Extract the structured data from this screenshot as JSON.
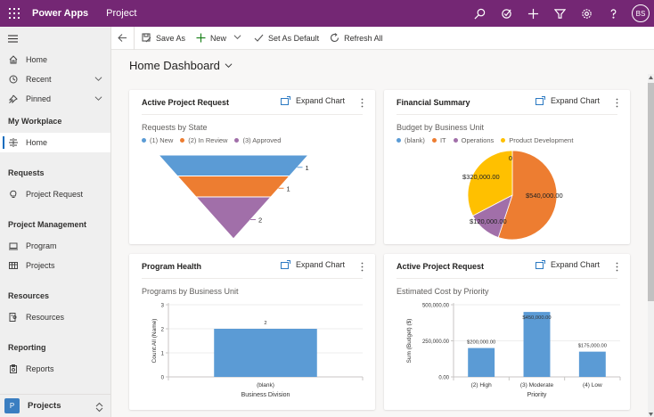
{
  "topbar": {
    "brand": "Power Apps",
    "app_name": "Project",
    "icons": [
      "search-icon",
      "task-icon",
      "plus-icon",
      "filter-icon",
      "gear-icon",
      "help-icon"
    ],
    "avatar_initials": "BS",
    "color": "#742774"
  },
  "commandbar": {
    "save_as": "Save As",
    "new": "New",
    "set_default": "Set As Default",
    "refresh_all": "Refresh All"
  },
  "sidebar": {
    "top_items": [
      {
        "label": "Home",
        "icon": "home-icon"
      },
      {
        "label": "Recent",
        "icon": "clock-icon",
        "expandable": true
      },
      {
        "label": "Pinned",
        "icon": "pin-icon",
        "expandable": true
      }
    ],
    "groups": [
      {
        "title": "My Workplace",
        "items": [
          {
            "label": "Home",
            "icon": "dashboard-icon",
            "active": true
          }
        ]
      },
      {
        "title": "Requests",
        "items": [
          {
            "label": "Project Request",
            "icon": "lightbulb-icon"
          }
        ]
      },
      {
        "title": "Project Management",
        "items": [
          {
            "label": "Program",
            "icon": "laptop-icon"
          },
          {
            "label": "Projects",
            "icon": "grid-icon"
          }
        ]
      },
      {
        "title": "Resources",
        "items": [
          {
            "label": "Resources",
            "icon": "resources-icon"
          }
        ]
      },
      {
        "title": "Reporting",
        "items": [
          {
            "label": "Reports",
            "icon": "clipboard-icon"
          }
        ]
      }
    ],
    "footer": {
      "badge": "P",
      "label": "Projects"
    }
  },
  "page": {
    "title": "Home Dashboard"
  },
  "cards": [
    {
      "title": "Active Project Request",
      "expand_label": "Expand Chart"
    },
    {
      "title": "Financial Summary",
      "expand_label": "Expand Chart"
    },
    {
      "title": "Program Health",
      "expand_label": "Expand Chart"
    },
    {
      "title": "Active Project Request",
      "expand_label": "Expand Chart"
    }
  ],
  "chart_data": [
    {
      "type": "funnel",
      "title": "Requests by State",
      "categories": [
        "(1) New",
        "(2) In Review",
        "(3) Approved"
      ],
      "values": [
        1,
        1,
        2
      ],
      "colors": [
        "#5b9bd5",
        "#ed7d31",
        "#a16fa9"
      ]
    },
    {
      "type": "pie",
      "title": "Budget by Business Unit",
      "categories": [
        "(blank)",
        "IT",
        "Operations",
        "Product Development"
      ],
      "values": [
        0,
        540000,
        120000,
        320000
      ],
      "data_labels": [
        "0",
        "$540,000.00",
        "$120,000.00",
        "$320,000.00"
      ],
      "colors": [
        "#5b9bd5",
        "#ed7d31",
        "#a16fa9",
        "#ffc000"
      ]
    },
    {
      "type": "bar",
      "title": "Programs by Business Unit",
      "categories": [
        "(blank)"
      ],
      "values": [
        2
      ],
      "data_labels": [
        "2"
      ],
      "xlabel": "Business Division",
      "ylabel": "Count:All (Name)",
      "ylim": [
        0,
        3
      ],
      "yticks": [
        "0",
        "1",
        "2",
        "3"
      ],
      "color": "#5b9bd5"
    },
    {
      "type": "bar",
      "title": "Estimated Cost by Priority",
      "categories": [
        "(2) High",
        "(3) Moderate",
        "(4) Low"
      ],
      "values": [
        200000,
        450000,
        175000
      ],
      "data_labels": [
        "$200,000.00",
        "$450,000.00",
        "$175,000.00"
      ],
      "xlabel": "Priority",
      "ylabel": "Sum (Budget) ($)",
      "ylim": [
        0,
        500000
      ],
      "yticks": [
        "0.00",
        "250,000.00",
        "500,000.00"
      ],
      "color": "#5b9bd5"
    }
  ]
}
